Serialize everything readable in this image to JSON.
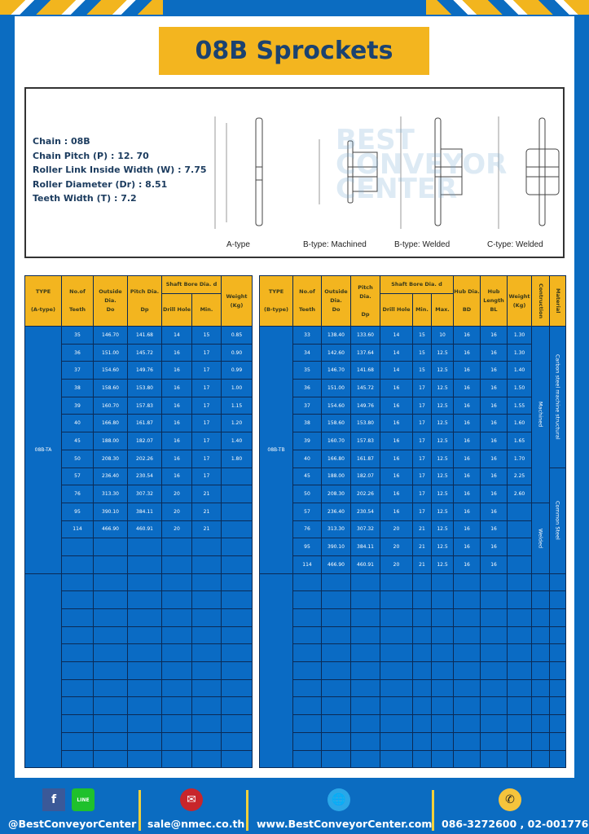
{
  "title": "08B Sprockets",
  "specs": [
    "Chain  : 08B",
    "Chain Pitch (P)  :  12. 70",
    "Roller Link Inside Width (W)  :  7.75",
    "Roller Diameter (Dr)  : 8.51",
    "Teeth Width (T)  :  7.2"
  ],
  "diagram_labels": [
    "A-type",
    "B-type: Machined",
    "B-type: Welded",
    "C-type: Welded"
  ],
  "watermark": "BEST CONVEYOR CENTER",
  "tableA": {
    "headers": {
      "type": "TYPE",
      "type2": "(A-type)",
      "teeth": "No.of",
      "teeth2": "Teeth",
      "od": "Outside",
      "od2": "Dia.",
      "od3": "Do",
      "pd": "Pitch Dia.",
      "pd2": "Dp",
      "bore": "Shaft Bore Dia. d",
      "drill": "Drill Hole",
      "min": "Min.",
      "wt": "Weight",
      "wt2": "(Kg)"
    },
    "group": "08B-TA",
    "rows": [
      [
        "35",
        "146.70",
        "141.68",
        "14",
        "15",
        "0.85"
      ],
      [
        "36",
        "151.00",
        "145.72",
        "16",
        "17",
        "0.90"
      ],
      [
        "37",
        "154.60",
        "149.76",
        "16",
        "17",
        "0.99"
      ],
      [
        "38",
        "158.60",
        "153.80",
        "16",
        "17",
        "1.00"
      ],
      [
        "39",
        "160.70",
        "157.83",
        "16",
        "17",
        "1.15"
      ],
      [
        "40",
        "166.80",
        "161.87",
        "16",
        "17",
        "1.20"
      ],
      [
        "45",
        "188.00",
        "182.07",
        "16",
        "17",
        "1.40"
      ],
      [
        "50",
        "208.30",
        "202.26",
        "16",
        "17",
        "1.80"
      ],
      [
        "57",
        "236.40",
        "230.54",
        "16",
        "17",
        ""
      ],
      [
        "76",
        "313.30",
        "307.32",
        "20",
        "21",
        ""
      ],
      [
        "95",
        "390.10",
        "384.11",
        "20",
        "21",
        ""
      ],
      [
        "114",
        "466.90",
        "460.91",
        "20",
        "21",
        ""
      ]
    ]
  },
  "tableB": {
    "headers": {
      "type": "TYPE",
      "type2": "(B-type)",
      "teeth": "No.of",
      "teeth2": "Teeth",
      "od": "Outside",
      "od2": "Dia.",
      "od3": "Do",
      "pd": "Pitch Dia.",
      "pd2": "Dp",
      "bore": "Shaft Bore Dia. d",
      "drill": "Drill Hole",
      "min": "Min.",
      "max": "Max.",
      "hub": "Hub Dia.",
      "hub2": "BD",
      "hl": "Hub",
      "hl2": "Length",
      "hl3": "BL",
      "wt": "Weight",
      "wt2": "(Kg)",
      "con": "Contruction",
      "mat": "Material"
    },
    "group": "08B-TB",
    "construction": [
      "Machined",
      "Welded"
    ],
    "material": [
      "Carbon steel  machine structural",
      "Common Steel"
    ],
    "rows": [
      [
        "33",
        "138.40",
        "133.60",
        "14",
        "15",
        "10",
        "16",
        "16",
        "1.30"
      ],
      [
        "34",
        "142.60",
        "137.64",
        "14",
        "15",
        "12.5",
        "16",
        "16",
        "1.30"
      ],
      [
        "35",
        "146.70",
        "141.68",
        "14",
        "15",
        "12.5",
        "16",
        "16",
        "1.40"
      ],
      [
        "36",
        "151.00",
        "145.72",
        "16",
        "17",
        "12.5",
        "16",
        "16",
        "1.50"
      ],
      [
        "37",
        "154.60",
        "149.76",
        "16",
        "17",
        "12.5",
        "16",
        "16",
        "1.55"
      ],
      [
        "38",
        "158.60",
        "153.80",
        "16",
        "17",
        "12.5",
        "16",
        "16",
        "1.60"
      ],
      [
        "39",
        "160.70",
        "157.83",
        "16",
        "17",
        "12.5",
        "16",
        "16",
        "1.65"
      ],
      [
        "40",
        "166.80",
        "161.87",
        "16",
        "17",
        "12.5",
        "16",
        "16",
        "1.70"
      ],
      [
        "45",
        "188.00",
        "182.07",
        "16",
        "17",
        "12.5",
        "16",
        "16",
        "2.25"
      ],
      [
        "50",
        "208.30",
        "202.26",
        "16",
        "17",
        "12.5",
        "16",
        "16",
        "2.60"
      ],
      [
        "57",
        "236.40",
        "230.54",
        "16",
        "17",
        "12.5",
        "16",
        "16",
        ""
      ],
      [
        "76",
        "313.30",
        "307.32",
        "20",
        "21",
        "12.5",
        "16",
        "16",
        ""
      ],
      [
        "95",
        "390.10",
        "384.11",
        "20",
        "21",
        "12.5",
        "16",
        "16",
        ""
      ],
      [
        "114",
        "466.90",
        "460.91",
        "20",
        "21",
        "12.5",
        "16",
        "16",
        ""
      ]
    ]
  },
  "footer": {
    "social": "@BestConveyorCenter",
    "email": "sale@nmec.co.th",
    "web": "www.BestConveyorCenter.com",
    "phone": "086-3272600 , 02-0017766",
    "line_label": "LINE"
  },
  "colors": {
    "blue": "#0b6cc1",
    "yellow": "#f3b51f",
    "title_text": "#1b4270"
  }
}
